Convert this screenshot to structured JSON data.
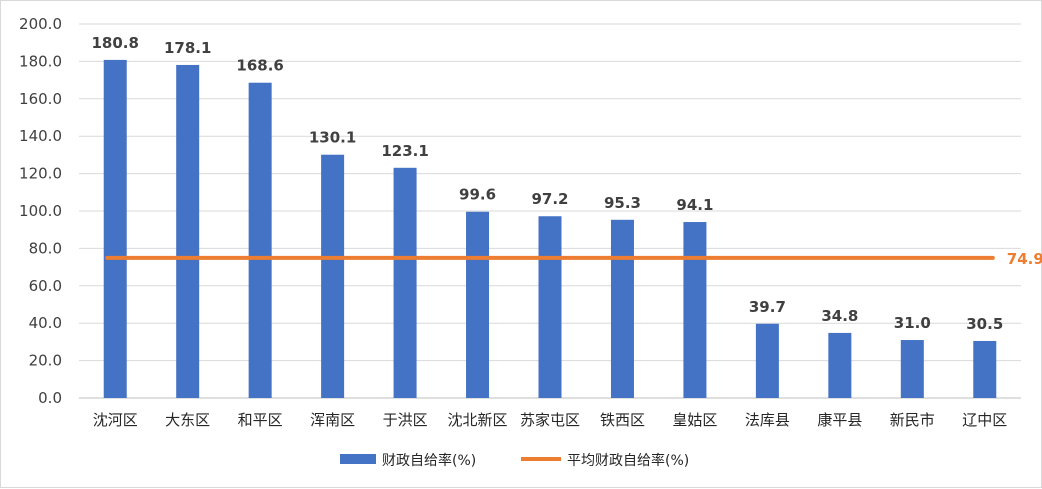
{
  "chart_data": {
    "type": "bar",
    "categories": [
      "沈河区",
      "大东区",
      "和平区",
      "浑南区",
      "于洪区",
      "沈北新区",
      "苏家屯区",
      "铁西区",
      "皇姑区",
      "法库县",
      "康平县",
      "新民市",
      "辽中区"
    ],
    "series": [
      {
        "name": "财政自给率(%)",
        "values": [
          180.8,
          178.1,
          168.6,
          130.1,
          123.1,
          99.6,
          97.2,
          95.3,
          94.1,
          39.7,
          34.8,
          31.0,
          30.5
        ],
        "color": "#4472C4"
      }
    ],
    "reference_line": {
      "name": "平均财政自给率(%)",
      "value": 74.9,
      "color": "#ED7D31"
    },
    "ylim": [
      0,
      200
    ],
    "yticks": [
      "0.0",
      "20.0",
      "40.0",
      "60.0",
      "80.0",
      "100.0",
      "120.0",
      "140.0",
      "160.0",
      "180.0",
      "200.0"
    ],
    "grid": true,
    "legend_position": "bottom",
    "title": "",
    "xlabel": "",
    "ylabel": ""
  }
}
